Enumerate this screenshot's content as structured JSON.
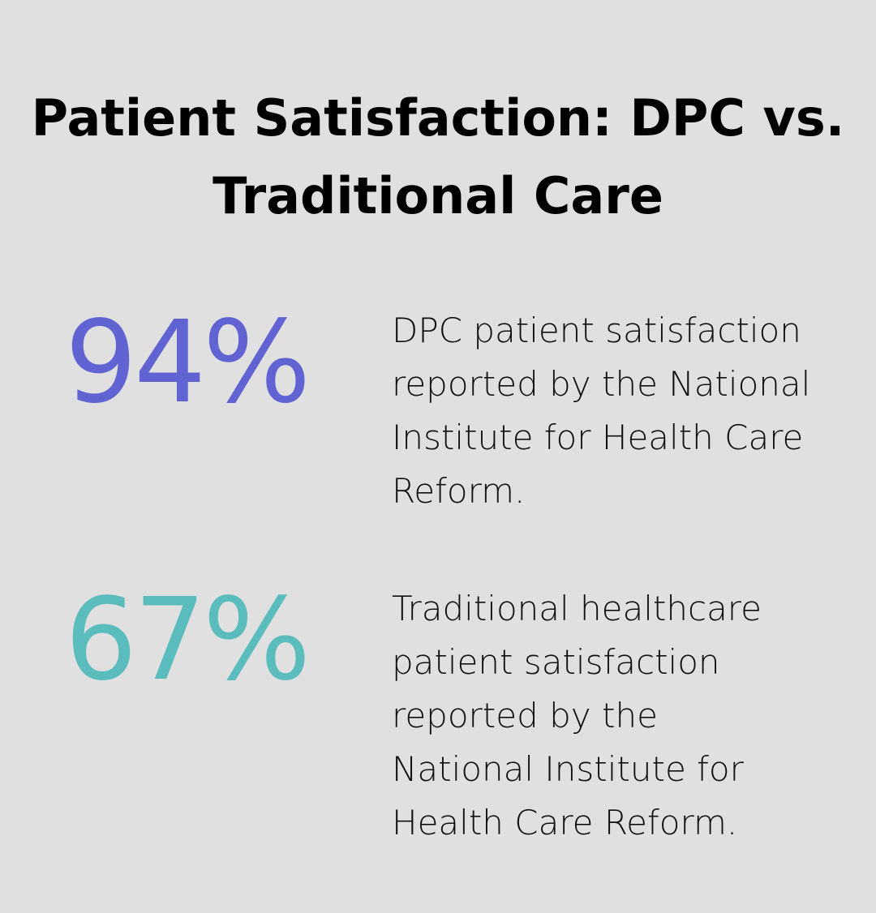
{
  "title": "Patient Satisfaction: DPC vs. Traditional Care",
  "stats": [
    {
      "value": "94%",
      "color": "#6163d2",
      "description": "DPC patient satisfaction reported by the National Institute for Health Care Reform."
    },
    {
      "value": "67%",
      "color": "#5bbcbe",
      "description": "Traditional healthcare patient satisfaction reported by the National Institute for Health Care Reform."
    }
  ]
}
